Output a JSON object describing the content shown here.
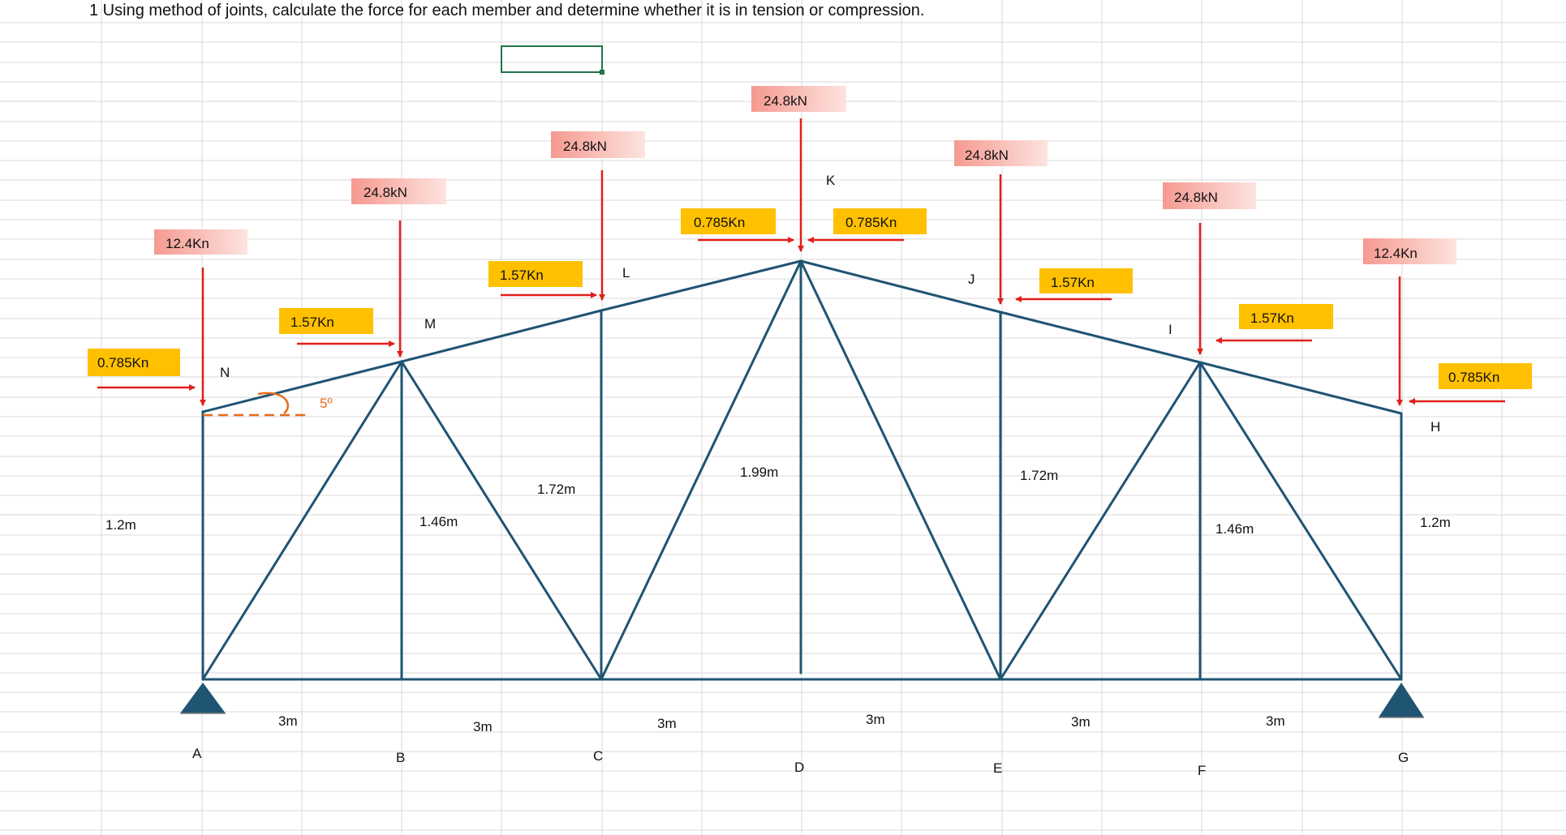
{
  "title": "1 Using method of joints, calculate the force for each member and determine whether it is in tension or compression.",
  "colors": {
    "member": "#1f5472",
    "force_arrow": "#e0201b",
    "angle_marker": "#e36c1d",
    "gold_label_fill": "#ffc000",
    "pink_label_fill": "#f6a79f",
    "grid": "#d9d9d9",
    "selected_cell": "#217346"
  },
  "joints": {
    "A": "A",
    "B": "B",
    "C": "C",
    "D": "D",
    "E": "E",
    "F": "F",
    "G": "G",
    "H": "H",
    "I": "I",
    "J": "J",
    "K": "K",
    "L": "L",
    "M": "M",
    "N": "N"
  },
  "spans": [
    "3m",
    "3m",
    "3m",
    "3m",
    "3m",
    "3m"
  ],
  "heights": {
    "left_end": "1.2m",
    "m": "1.46m",
    "l": "1.72m",
    "k": "1.99m",
    "j": "1.72m",
    "i": "1.46m",
    "right_end": "1.2m"
  },
  "angle_label": "5º",
  "vertical_loads": {
    "n": "12.4Kn",
    "m": "24.8kN",
    "l": "24.8kN",
    "k": "24.8kN",
    "j": "24.8kN",
    "i": "24.8kN",
    "h": "12.4Kn"
  },
  "horizontal_loads": {
    "n": "0.785Kn",
    "m": "1.57Kn",
    "l": "1.57Kn",
    "k_left": "0.785Kn",
    "k_right": "0.785Kn",
    "j": "1.57Kn",
    "i": "1.57Kn",
    "h": "0.785Kn"
  }
}
